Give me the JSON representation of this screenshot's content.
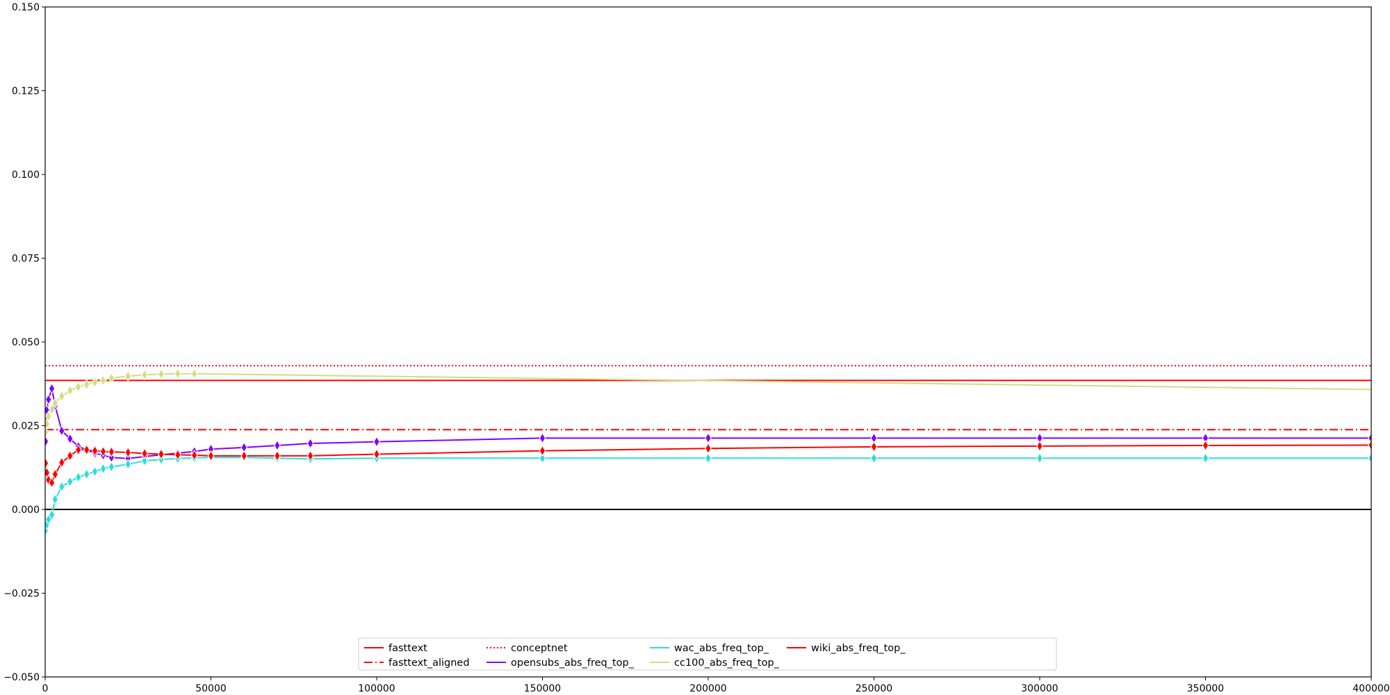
{
  "chart_data": {
    "type": "line",
    "xlim": [
      0,
      400000
    ],
    "ylim": [
      -0.05,
      0.15
    ],
    "x_ticks": [
      0,
      50000,
      100000,
      150000,
      200000,
      250000,
      300000,
      350000,
      400000
    ],
    "x_tick_labels": [
      "0",
      "50000",
      "100000",
      "150000",
      "200000",
      "250000",
      "300000",
      "350000",
      "400000"
    ],
    "y_ticks": [
      -0.05,
      -0.025,
      0.0,
      0.025,
      0.05,
      0.075,
      0.1,
      0.125,
      0.15
    ],
    "y_tick_labels": [
      "−0.050",
      "−0.025",
      "0.000",
      "0.025",
      "0.050",
      "0.075",
      "0.100",
      "0.125",
      "0.150"
    ],
    "grid": false,
    "legend_position": "bottom-center",
    "reference_line": {
      "y": 0.0,
      "color": "#000000"
    },
    "horizontal_series": [
      {
        "name": "fasttext",
        "y": 0.0385,
        "color": "#ff0000",
        "dash": "solid"
      },
      {
        "name": "fasttext_aligned",
        "y": 0.0238,
        "color": "#ff0000",
        "dash": "dashdot"
      },
      {
        "name": "conceptnet",
        "y": 0.0429,
        "color": "#ff0000",
        "dash": "dotted"
      }
    ],
    "series": [
      {
        "name": "opensubs_abs_freq_top_",
        "color": "#8000ff",
        "x": [
          100,
          500,
          1000,
          2000,
          3000,
          5000,
          7500,
          10000,
          12500,
          15000,
          17500,
          20000,
          25000,
          30000,
          35000,
          40000,
          45000,
          50000,
          60000,
          70000,
          80000,
          100000,
          150000,
          200000,
          250000,
          300000,
          350000,
          400000
        ],
        "y": [
          0.0203,
          0.0296,
          0.0328,
          0.0361,
          0.031,
          0.0235,
          0.0211,
          0.0188,
          0.0178,
          0.0168,
          0.0162,
          0.0155,
          0.0152,
          0.0158,
          0.0163,
          0.0168,
          0.0173,
          0.018,
          0.0185,
          0.0191,
          0.0197,
          0.0202,
          0.0213,
          0.0213,
          0.0213,
          0.0213,
          0.0213,
          0.0213
        ]
      },
      {
        "name": "wac_abs_freq_top_",
        "color": "#2adddd",
        "x": [
          100,
          500,
          1000,
          2000,
          3000,
          5000,
          7500,
          10000,
          12500,
          15000,
          17500,
          20000,
          25000,
          30000,
          35000,
          40000,
          45000,
          50000,
          60000,
          70000,
          80000,
          100000,
          150000,
          200000,
          250000,
          300000,
          350000,
          400000
        ],
        "y": [
          -0.0062,
          -0.0045,
          -0.003,
          -0.0016,
          0.003,
          0.0068,
          0.0083,
          0.0096,
          0.0105,
          0.0113,
          0.0122,
          0.0127,
          0.0135,
          0.0145,
          0.0149,
          0.0152,
          0.0154,
          0.0155,
          0.0155,
          0.0153,
          0.0151,
          0.0153,
          0.0153,
          0.0153,
          0.0153,
          0.0153,
          0.0153,
          0.0153
        ]
      },
      {
        "name": "cc100_abs_freq_top_",
        "color": "#d4dd80",
        "x": [
          100,
          500,
          1000,
          2000,
          3000,
          5000,
          7500,
          10000,
          12500,
          15000,
          17500,
          20000,
          25000,
          30000,
          35000,
          40000,
          45000,
          400000
        ],
        "y": [
          0.023,
          0.0255,
          0.0278,
          0.0298,
          0.0318,
          0.0338,
          0.0355,
          0.0366,
          0.0373,
          0.038,
          0.0385,
          0.0392,
          0.0398,
          0.0402,
          0.0404,
          0.0405,
          0.0405,
          0.0358
        ]
      },
      {
        "name": "wiki_abs_freq_top_",
        "color": "#ff0000",
        "x": [
          100,
          500,
          1000,
          2000,
          3000,
          5000,
          7500,
          10000,
          12500,
          15000,
          17500,
          20000,
          25000,
          30000,
          35000,
          40000,
          45000,
          50000,
          60000,
          70000,
          80000,
          100000,
          150000,
          200000,
          250000,
          300000,
          350000,
          400000
        ],
        "y": [
          0.0138,
          0.011,
          0.0088,
          0.008,
          0.0105,
          0.014,
          0.016,
          0.0178,
          0.0178,
          0.0175,
          0.0173,
          0.0172,
          0.017,
          0.0167,
          0.0165,
          0.0163,
          0.0162,
          0.016,
          0.016,
          0.016,
          0.016,
          0.0165,
          0.0175,
          0.0182,
          0.0187,
          0.0189,
          0.0191,
          0.0192
        ]
      }
    ],
    "legend": [
      {
        "name": "fasttext",
        "color": "#ff0000",
        "dash": "solid"
      },
      {
        "name": "fasttext_aligned",
        "color": "#ff0000",
        "dash": "dashdot"
      },
      {
        "name": "conceptnet",
        "color": "#ff0000",
        "dash": "dotted"
      },
      {
        "name": "opensubs_abs_freq_top_",
        "color": "#8000ff",
        "dash": "solid"
      },
      {
        "name": "wac_abs_freq_top_",
        "color": "#2adddd",
        "dash": "solid"
      },
      {
        "name": "cc100_abs_freq_top_",
        "color": "#d4dd80",
        "dash": "solid"
      },
      {
        "name": "wiki_abs_freq_top_",
        "color": "#ff0000",
        "dash": "solid"
      }
    ]
  }
}
